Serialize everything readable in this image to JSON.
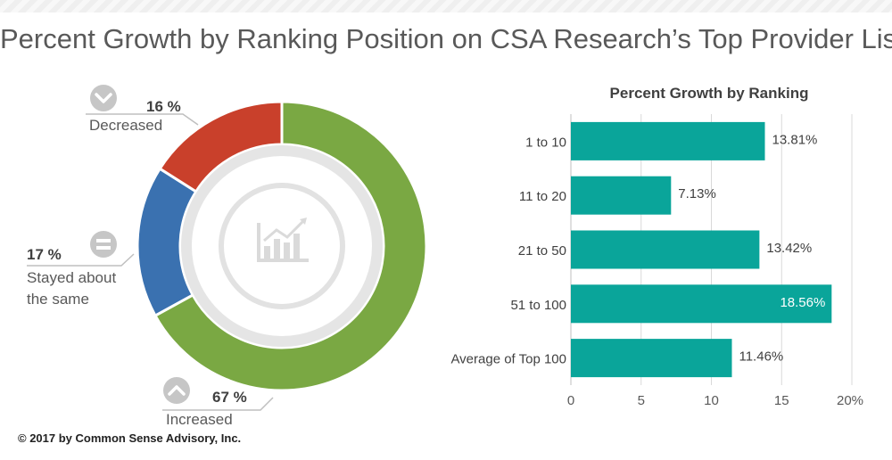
{
  "page": {
    "title": "Percent Growth by Ranking Position on CSA Research’s Top Provider List",
    "copyright": "© 2017 by Common Sense Advisory, Inc."
  },
  "icons": {
    "decreased": "chevron-down-icon",
    "same": "equals-icon",
    "increased": "chevron-up-icon",
    "center": "growth-chart-icon"
  },
  "chart_data": [
    {
      "type": "pie",
      "donut": true,
      "slices": [
        {
          "label": "Increased",
          "value": 67,
          "display": "67 %",
          "color": "#7aa843"
        },
        {
          "label": "Stayed about the same",
          "value": 17,
          "display": "17 %",
          "color": "#3a71b0"
        },
        {
          "label": "Decreased",
          "value": 16,
          "display": "16 %",
          "color": "#c9402b"
        }
      ]
    },
    {
      "type": "bar",
      "orientation": "horizontal",
      "title": "Percent Growth by Ranking",
      "categories": [
        "1 to 10",
        "11 to 20",
        "21 to 50",
        "51 to 100",
        "Average of Top 100"
      ],
      "values": [
        13.81,
        7.13,
        13.42,
        18.56,
        11.46
      ],
      "value_labels": [
        "13.81%",
        "7.13%",
        "13.42%",
        "18.56%",
        "11.46%"
      ],
      "xlim": [
        0,
        20
      ],
      "xticks": [
        "0",
        "5",
        "10",
        "15",
        "20%"
      ],
      "color": "#0aa59a",
      "grid": true
    }
  ]
}
